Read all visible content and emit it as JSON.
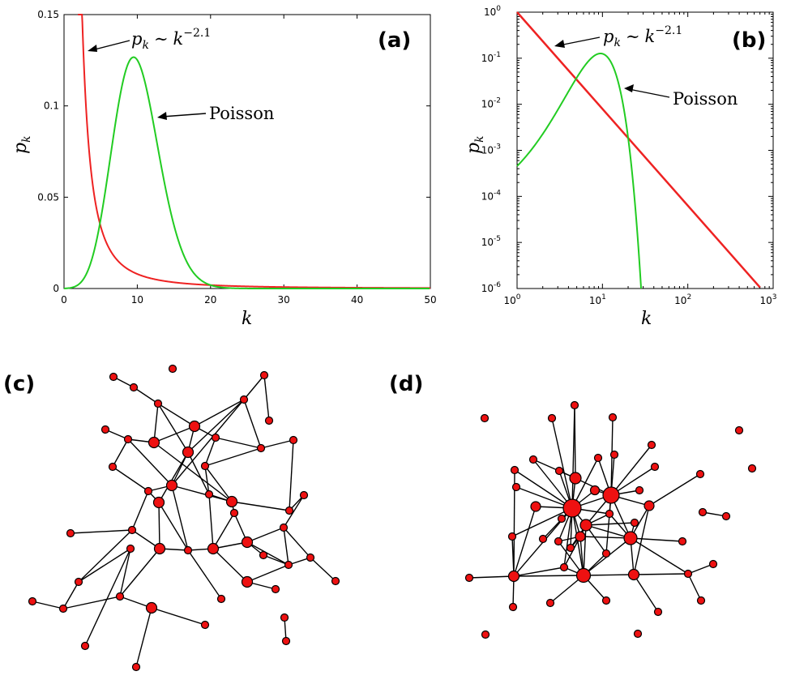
{
  "panel_labels": {
    "a": "(a)",
    "b": "(b)",
    "c": "(c)",
    "d": "(d)"
  },
  "annotations": {
    "powerlaw_pk": "p",
    "powerlaw_k_sub": "k",
    "powerlaw_sim": "∼",
    "powerlaw_k": "k",
    "powerlaw_exp": "−2.1",
    "poisson": "Poisson"
  },
  "colors": {
    "power_law": "#ee2222",
    "poisson": "#22cc22",
    "node": "#ee1111"
  },
  "chart_data": [
    {
      "type": "line",
      "panel": "(a)",
      "xlabel": "k",
      "ylabel": "p_k",
      "ylabel_main": "p",
      "ylabel_sub": "k",
      "xlim": [
        0,
        50
      ],
      "ylim": [
        0,
        0.15
      ],
      "xticks": [
        0,
        10,
        20,
        30,
        40,
        50
      ],
      "xtick_labels": [
        "0",
        "10",
        "20",
        "30",
        "40",
        "50"
      ],
      "yticks": [
        0,
        0.05,
        0.1,
        0.15
      ],
      "ytick_labels": [
        "0",
        "0.05",
        "0.1",
        "0.15"
      ],
      "series": [
        {
          "name": "p_k ∼ k^−2.1",
          "type": "power_law",
          "exponent": -2.1,
          "x_min": 1,
          "x_max": 50
        },
        {
          "name": "Poisson",
          "type": "poisson",
          "mean": 10,
          "x_min": 0,
          "x_max": 50
        }
      ]
    },
    {
      "type": "line",
      "panel": "(b)",
      "xlabel": "k",
      "ylabel": "p_k",
      "ylabel_main": "p",
      "ylabel_sub": "k",
      "xscale": "log",
      "yscale": "log",
      "xlim": [
        1,
        1000
      ],
      "ylim": [
        1e-06,
        1
      ],
      "xticks": [
        1,
        10,
        100,
        1000
      ],
      "xtick_base": [
        "10",
        "10",
        "10",
        "10"
      ],
      "xtick_exp": [
        "0",
        "1",
        "2",
        "3"
      ],
      "yticks": [
        1e-06,
        1e-05,
        0.0001,
        0.001,
        0.01,
        0.1,
        1
      ],
      "ytick_base": [
        "10",
        "10",
        "10",
        "10",
        "10",
        "10",
        "10"
      ],
      "ytick_exp": [
        "-6",
        "-5",
        "-4",
        "-3",
        "-2",
        "-1",
        "0"
      ],
      "series": [
        {
          "name": "p_k ∼ k^−2.1",
          "type": "power_law",
          "exponent": -2.1,
          "x_min": 1,
          "x_max": 700
        },
        {
          "name": "Poisson",
          "type": "poisson",
          "mean": 10,
          "x_min": 1,
          "x_max": 30
        }
      ]
    }
  ]
}
